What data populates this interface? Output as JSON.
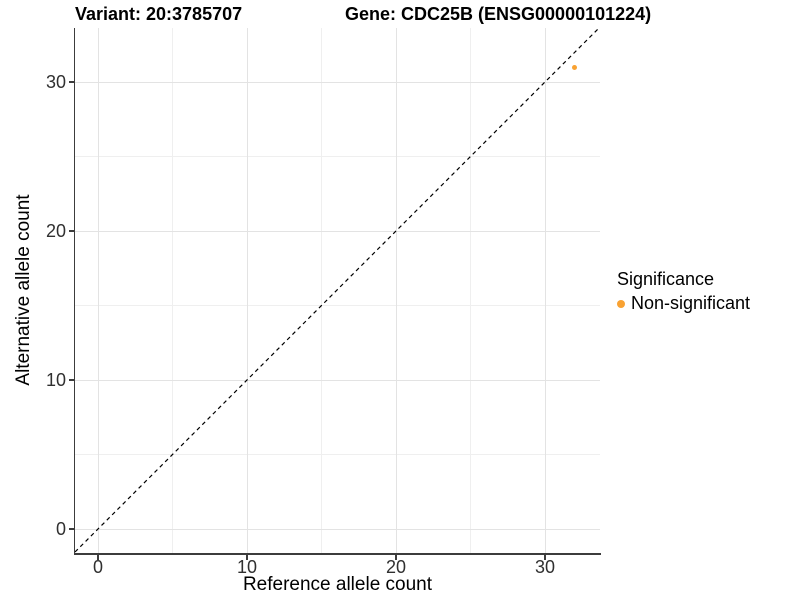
{
  "chart_data": {
    "type": "scatter",
    "titles": {
      "left": "Variant: 20:3785707",
      "right": "Gene: CDC25B (ENSG00000101224)"
    },
    "xlabel": "Reference allele count",
    "ylabel": "Alternative allele count",
    "xlim": [
      -1.6,
      33.6
    ],
    "ylim": [
      -1.6,
      33.6
    ],
    "x_major_ticks": [
      0,
      10,
      20,
      30
    ],
    "y_major_ticks": [
      0,
      10,
      20,
      30
    ],
    "x_minor_gridlines": [
      5,
      15,
      25
    ],
    "y_minor_gridlines": [
      5,
      15,
      25
    ],
    "grid": "major+minor",
    "aspect": "equal",
    "series": [
      {
        "name": "Non-significant",
        "color": "#F9A232",
        "points": [
          {
            "x": 32,
            "y": 31
          }
        ]
      }
    ],
    "reference_line": {
      "kind": "y=x",
      "style": "dashed",
      "color": "#000000"
    },
    "legend": {
      "title": "Significance",
      "position": "right",
      "entries": [
        {
          "label": "Non-significant",
          "color": "#F9A232"
        }
      ]
    },
    "colors": {
      "point": "#F9A232",
      "axis_line": "#3C3C3C",
      "grid_major": "#E3E3E3",
      "grid_minor": "#EFEFEF",
      "tick_label": "#303030"
    }
  }
}
